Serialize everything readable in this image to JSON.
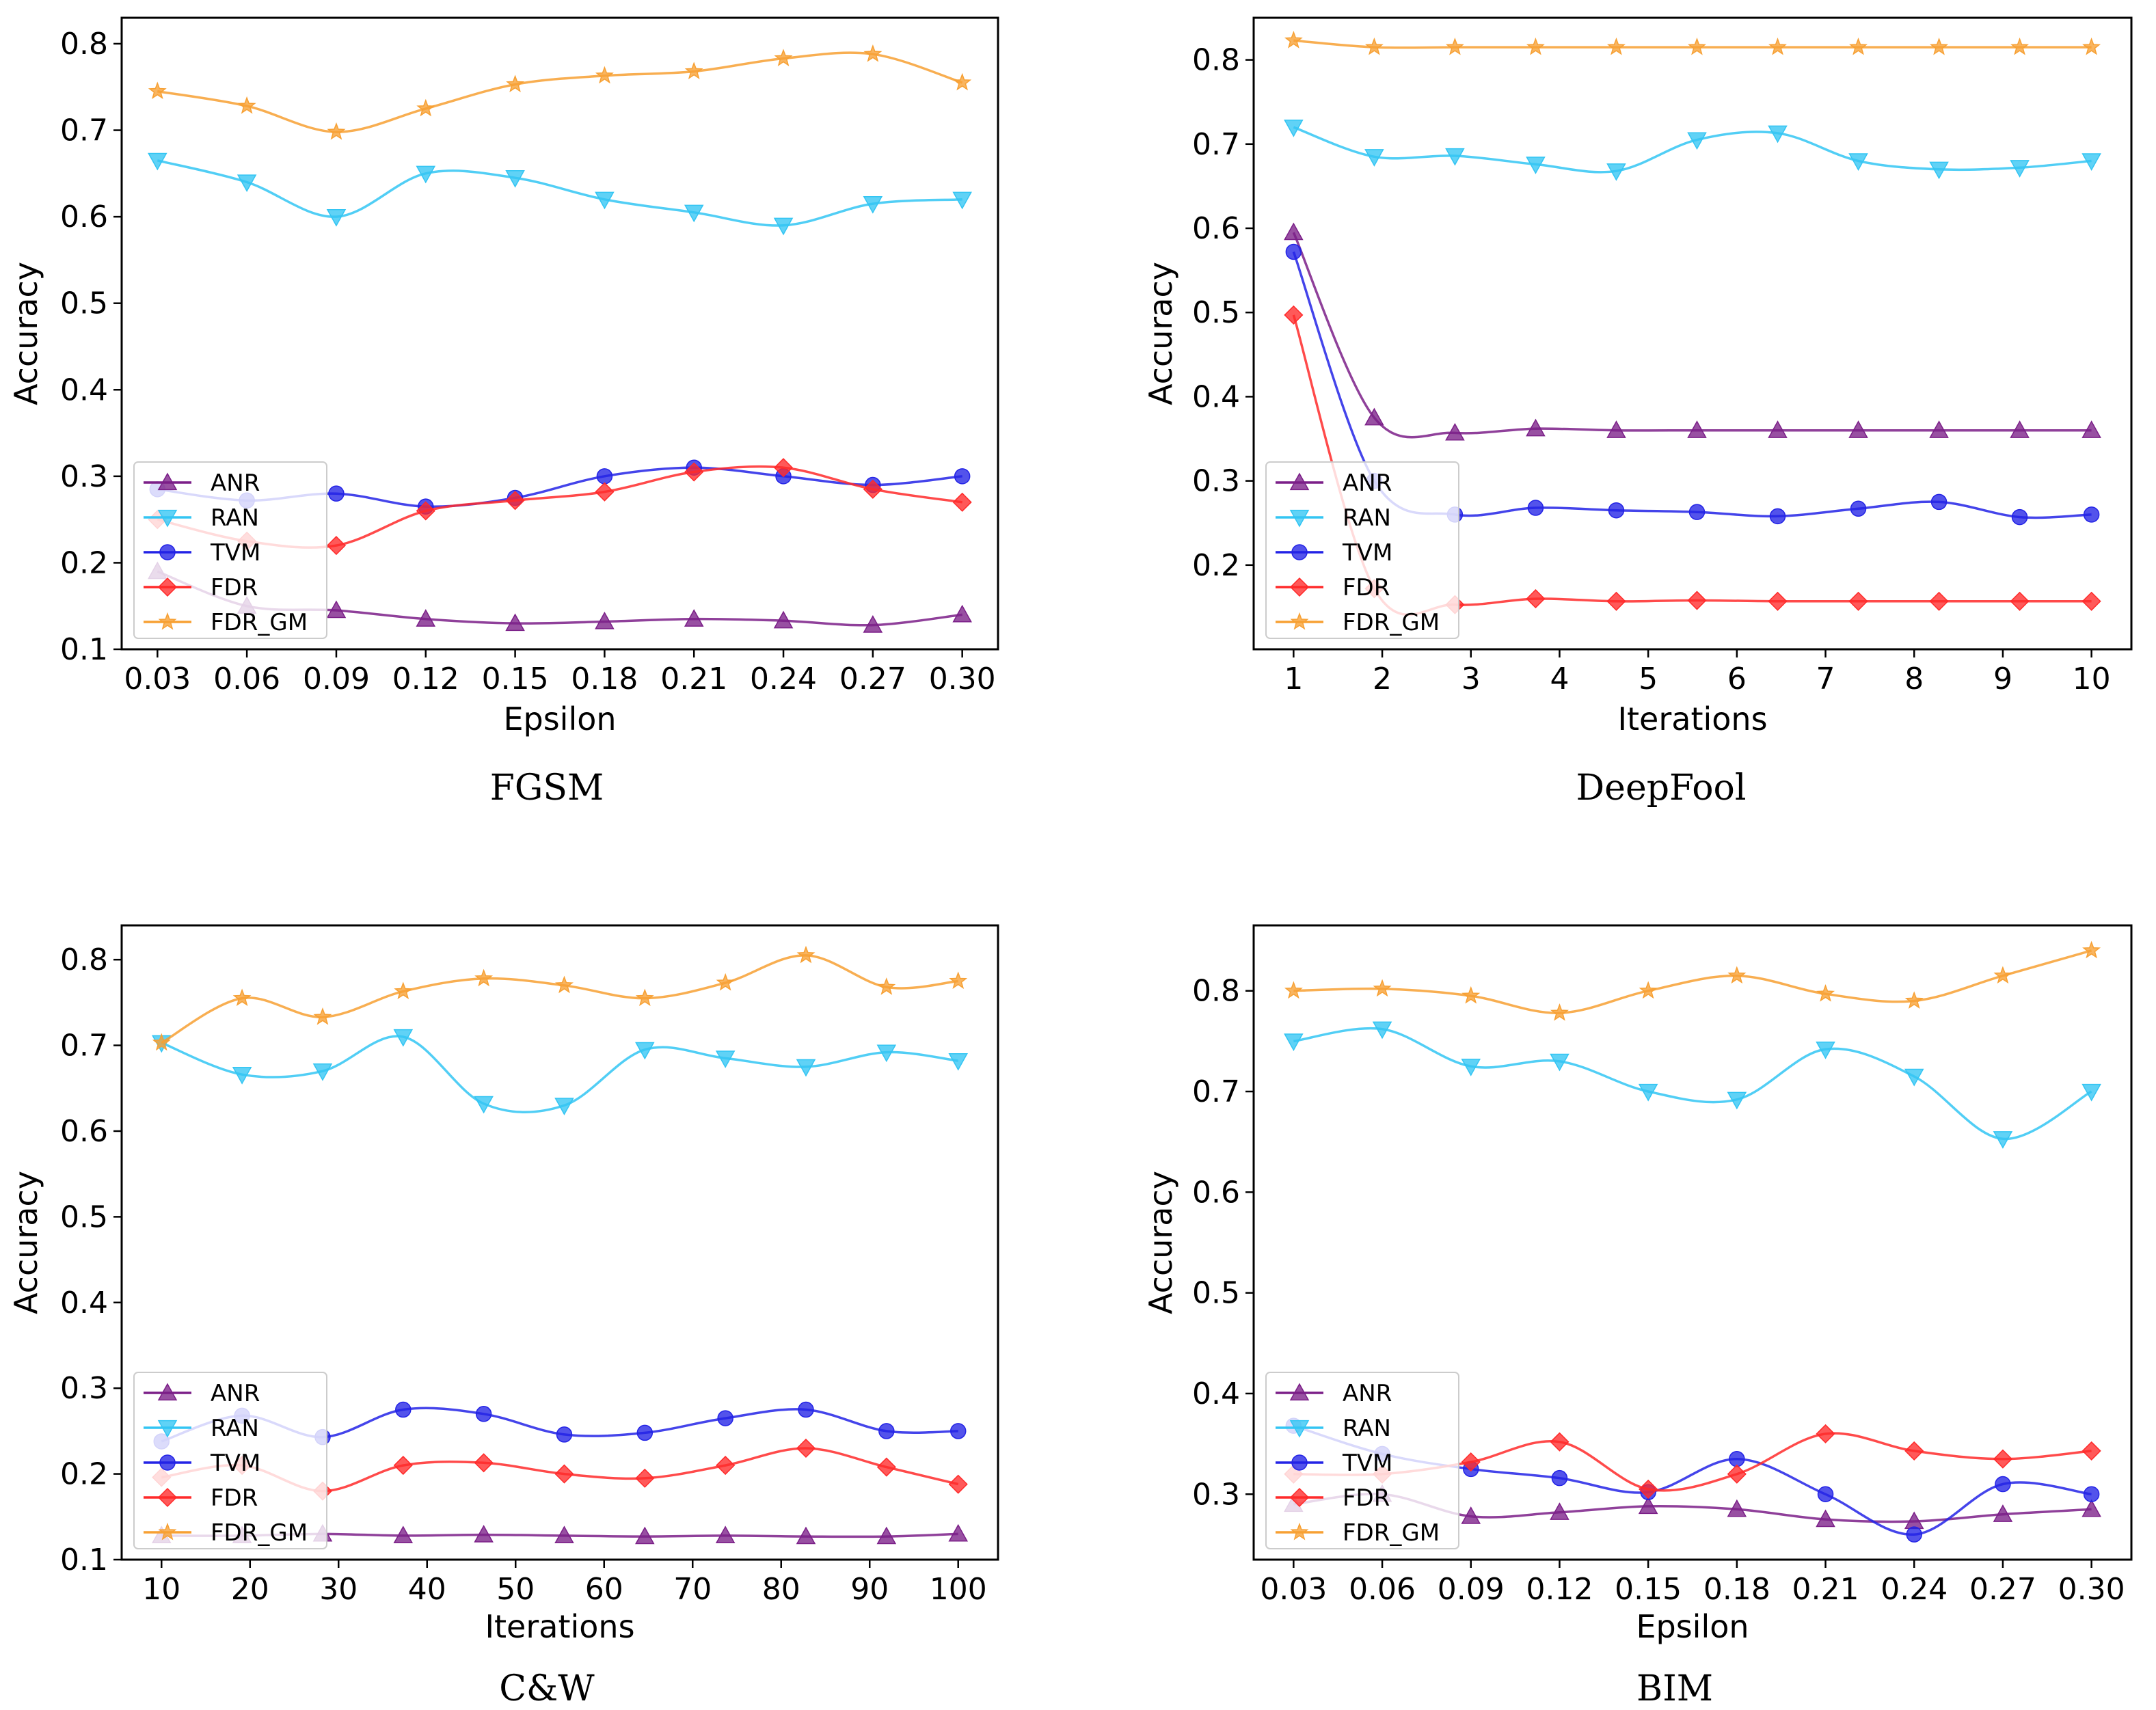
{
  "chart_data": [
    {
      "type": "line",
      "title": "FGSM",
      "xlabel": "Epsilon",
      "ylabel": "Accuracy",
      "x": [
        0.03,
        0.06,
        0.09,
        0.12,
        0.15,
        0.18,
        0.21,
        0.24,
        0.27,
        0.3
      ],
      "xticks": [
        "0.03",
        "0.06",
        "0.09",
        "0.12",
        "0.15",
        "0.18",
        "0.21",
        "0.24",
        "0.27",
        "0.30"
      ],
      "xlim": [
        0.018,
        0.312
      ],
      "yticks": [
        "0.1",
        "0.2",
        "0.3",
        "0.4",
        "0.5",
        "0.6",
        "0.7",
        "0.8"
      ],
      "ylim": [
        0.1,
        0.83
      ],
      "legend_position": "lower-left",
      "series": [
        {
          "name": "ANR",
          "marker": "triangle-up",
          "color": "#7b1f88",
          "x": [
            0.03,
            0.06,
            0.09,
            0.12,
            0.15,
            0.18,
            0.21,
            0.24,
            0.27,
            0.3
          ],
          "values": [
            0.19,
            0.15,
            0.145,
            0.135,
            0.13,
            0.132,
            0.135,
            0.133,
            0.128,
            0.14
          ]
        },
        {
          "name": "RAN",
          "marker": "triangle-down",
          "color": "#33c5f3",
          "x": [
            0.03,
            0.06,
            0.09,
            0.12,
            0.15,
            0.18,
            0.21,
            0.24,
            0.27,
            0.3
          ],
          "values": [
            0.665,
            0.64,
            0.6,
            0.65,
            0.645,
            0.62,
            0.605,
            0.59,
            0.615,
            0.62
          ]
        },
        {
          "name": "TVM",
          "marker": "circle",
          "color": "#2323e6",
          "x": [
            0.03,
            0.06,
            0.09,
            0.12,
            0.15,
            0.18,
            0.21,
            0.24,
            0.27,
            0.3
          ],
          "values": [
            0.285,
            0.272,
            0.28,
            0.265,
            0.275,
            0.3,
            0.31,
            0.3,
            0.29,
            0.3
          ]
        },
        {
          "name": "FDR",
          "marker": "diamond",
          "color": "#ff2a2a",
          "x": [
            0.03,
            0.06,
            0.09,
            0.12,
            0.15,
            0.18,
            0.21,
            0.24,
            0.27,
            0.3
          ],
          "values": [
            0.25,
            0.225,
            0.22,
            0.26,
            0.272,
            0.282,
            0.305,
            0.31,
            0.285,
            0.27
          ]
        },
        {
          "name": "FDR_GM",
          "marker": "star",
          "color": "#f7a033",
          "x": [
            0.03,
            0.06,
            0.09,
            0.12,
            0.15,
            0.18,
            0.21,
            0.24,
            0.27,
            0.3
          ],
          "values": [
            0.745,
            0.728,
            0.698,
            0.725,
            0.753,
            0.763,
            0.768,
            0.783,
            0.788,
            0.755
          ]
        }
      ]
    },
    {
      "type": "line",
      "title": "DeepFool",
      "xlabel": "Iterations",
      "ylabel": "Accuracy",
      "x": [
        1,
        2,
        3,
        4,
        5,
        6,
        7,
        8,
        9,
        10
      ],
      "xticks": [
        "1",
        "2",
        "3",
        "4",
        "5",
        "6",
        "7",
        "8",
        "9",
        "10"
      ],
      "xlim": [
        0.55,
        10.45
      ],
      "yticks": [
        "0.2",
        "0.3",
        "0.4",
        "0.5",
        "0.6",
        "0.7",
        "0.8"
      ],
      "ylim": [
        0.1,
        0.85
      ],
      "legend_position": "lower-left",
      "series": [
        {
          "name": "ANR",
          "marker": "triangle-up",
          "color": "#7b1f88",
          "x": [
            1,
            1.91,
            2.82,
            3.73,
            4.64,
            5.55,
            6.46,
            7.37,
            8.28,
            9.19,
            10
          ],
          "values": [
            0.595,
            0.375,
            0.357,
            0.362,
            0.36,
            0.36,
            0.36,
            0.36,
            0.36,
            0.36,
            0.36
          ]
        },
        {
          "name": "RAN",
          "marker": "triangle-down",
          "color": "#33c5f3",
          "x": [
            1,
            1.91,
            2.82,
            3.73,
            4.64,
            5.55,
            6.46,
            7.37,
            8.28,
            9.19,
            10
          ],
          "values": [
            0.72,
            0.685,
            0.686,
            0.676,
            0.668,
            0.705,
            0.713,
            0.68,
            0.67,
            0.672,
            0.68
          ]
        },
        {
          "name": "TVM",
          "marker": "circle",
          "color": "#2323e6",
          "x": [
            1,
            1.91,
            2.82,
            3.73,
            4.64,
            5.55,
            6.46,
            7.37,
            8.28,
            9.19,
            10
          ],
          "values": [
            0.572,
            0.3,
            0.26,
            0.268,
            0.265,
            0.263,
            0.258,
            0.267,
            0.275,
            0.257,
            0.26
          ]
        },
        {
          "name": "FDR",
          "marker": "diamond",
          "color": "#ff2a2a",
          "x": [
            1,
            1.91,
            2.82,
            3.73,
            4.64,
            5.55,
            6.46,
            7.37,
            8.28,
            9.19,
            10
          ],
          "values": [
            0.497,
            0.172,
            0.153,
            0.16,
            0.157,
            0.158,
            0.157,
            0.157,
            0.157,
            0.157,
            0.157
          ]
        },
        {
          "name": "FDR_GM",
          "marker": "star",
          "color": "#f7a033",
          "x": [
            1,
            1.91,
            2.82,
            3.73,
            4.64,
            5.55,
            6.46,
            7.37,
            8.28,
            9.19,
            10
          ],
          "values": [
            0.823,
            0.815,
            0.815,
            0.815,
            0.815,
            0.815,
            0.815,
            0.815,
            0.815,
            0.815,
            0.815
          ]
        }
      ]
    },
    {
      "type": "line",
      "title": "C&W",
      "xlabel": "Iterations",
      "ylabel": "Accuracy",
      "x": [
        10,
        20,
        30,
        40,
        50,
        60,
        70,
        80,
        90,
        100
      ],
      "xticks": [
        "10",
        "20",
        "30",
        "40",
        "50",
        "60",
        "70",
        "80",
        "90",
        "100"
      ],
      "xlim": [
        5.5,
        104.5
      ],
      "yticks": [
        "0.1",
        "0.2",
        "0.3",
        "0.4",
        "0.5",
        "0.6",
        "0.7",
        "0.8"
      ],
      "ylim": [
        0.1,
        0.84
      ],
      "legend_position": "lower-left",
      "series": [
        {
          "name": "ANR",
          "marker": "triangle-up",
          "color": "#7b1f88",
          "x": [
            10,
            19.1,
            28.2,
            37.3,
            46.4,
            55.5,
            64.6,
            73.7,
            82.8,
            91.9,
            100
          ],
          "values": [
            0.128,
            0.128,
            0.13,
            0.128,
            0.129,
            0.128,
            0.127,
            0.128,
            0.127,
            0.127,
            0.13
          ]
        },
        {
          "name": "RAN",
          "marker": "triangle-down",
          "color": "#33c5f3",
          "x": [
            10,
            19.1,
            28.2,
            37.3,
            46.4,
            55.5,
            64.6,
            73.7,
            82.8,
            91.9,
            100
          ],
          "values": [
            0.703,
            0.666,
            0.67,
            0.71,
            0.632,
            0.63,
            0.695,
            0.685,
            0.675,
            0.692,
            0.682
          ]
        },
        {
          "name": "TVM",
          "marker": "circle",
          "color": "#2323e6",
          "x": [
            10,
            19.1,
            28.2,
            37.3,
            46.4,
            55.5,
            64.6,
            73.7,
            82.8,
            91.9,
            100
          ],
          "values": [
            0.238,
            0.268,
            0.243,
            0.275,
            0.27,
            0.246,
            0.248,
            0.265,
            0.275,
            0.25,
            0.25
          ]
        },
        {
          "name": "FDR",
          "marker": "diamond",
          "color": "#ff2a2a",
          "x": [
            10,
            19.1,
            28.2,
            37.3,
            46.4,
            55.5,
            64.6,
            73.7,
            82.8,
            91.9,
            100
          ],
          "values": [
            0.196,
            0.21,
            0.18,
            0.21,
            0.213,
            0.2,
            0.195,
            0.21,
            0.23,
            0.208,
            0.188
          ]
        },
        {
          "name": "FDR_GM",
          "marker": "star",
          "color": "#f7a033",
          "x": [
            10,
            19.1,
            28.2,
            37.3,
            46.4,
            55.5,
            64.6,
            73.7,
            82.8,
            91.9,
            100
          ],
          "values": [
            0.703,
            0.755,
            0.733,
            0.763,
            0.778,
            0.77,
            0.755,
            0.773,
            0.805,
            0.768,
            0.775
          ]
        }
      ]
    },
    {
      "type": "line",
      "title": "BIM",
      "xlabel": "Epsilon",
      "ylabel": "Accuracy",
      "x": [
        0.03,
        0.06,
        0.09,
        0.12,
        0.15,
        0.18,
        0.21,
        0.24,
        0.27,
        0.3
      ],
      "xticks": [
        "0.03",
        "0.06",
        "0.09",
        "0.12",
        "0.15",
        "0.18",
        "0.21",
        "0.24",
        "0.27",
        "0.30"
      ],
      "xlim": [
        0.0165,
        0.3135
      ],
      "yticks": [
        "0.3",
        "0.4",
        "0.5",
        "0.6",
        "0.7",
        "0.8"
      ],
      "ylim": [
        0.235,
        0.865
      ],
      "legend_position": "lower-left",
      "series": [
        {
          "name": "ANR",
          "marker": "triangle-up",
          "color": "#7b1f88",
          "x": [
            0.03,
            0.06,
            0.09,
            0.12,
            0.15,
            0.18,
            0.21,
            0.24,
            0.27,
            0.3
          ],
          "values": [
            0.29,
            0.3,
            0.278,
            0.282,
            0.288,
            0.285,
            0.275,
            0.273,
            0.28,
            0.285
          ]
        },
        {
          "name": "RAN",
          "marker": "triangle-down",
          "color": "#33c5f3",
          "x": [
            0.03,
            0.06,
            0.09,
            0.12,
            0.15,
            0.18,
            0.21,
            0.24,
            0.27,
            0.3
          ],
          "values": [
            0.75,
            0.762,
            0.725,
            0.73,
            0.7,
            0.692,
            0.742,
            0.715,
            0.653,
            0.7
          ]
        },
        {
          "name": "TVM",
          "marker": "circle",
          "color": "#2323e6",
          "x": [
            0.03,
            0.06,
            0.09,
            0.12,
            0.15,
            0.18,
            0.21,
            0.24,
            0.27,
            0.3
          ],
          "values": [
            0.368,
            0.34,
            0.325,
            0.316,
            0.302,
            0.335,
            0.3,
            0.26,
            0.31,
            0.3
          ]
        },
        {
          "name": "FDR",
          "marker": "diamond",
          "color": "#ff2a2a",
          "x": [
            0.03,
            0.06,
            0.09,
            0.12,
            0.15,
            0.18,
            0.21,
            0.24,
            0.27,
            0.3
          ],
          "values": [
            0.32,
            0.32,
            0.332,
            0.352,
            0.305,
            0.32,
            0.36,
            0.343,
            0.335,
            0.343
          ]
        },
        {
          "name": "FDR_GM",
          "marker": "star",
          "color": "#f7a033",
          "x": [
            0.03,
            0.06,
            0.09,
            0.12,
            0.15,
            0.18,
            0.21,
            0.24,
            0.27,
            0.3
          ],
          "values": [
            0.8,
            0.802,
            0.795,
            0.778,
            0.8,
            0.815,
            0.797,
            0.79,
            0.815,
            0.84
          ]
        }
      ]
    }
  ]
}
